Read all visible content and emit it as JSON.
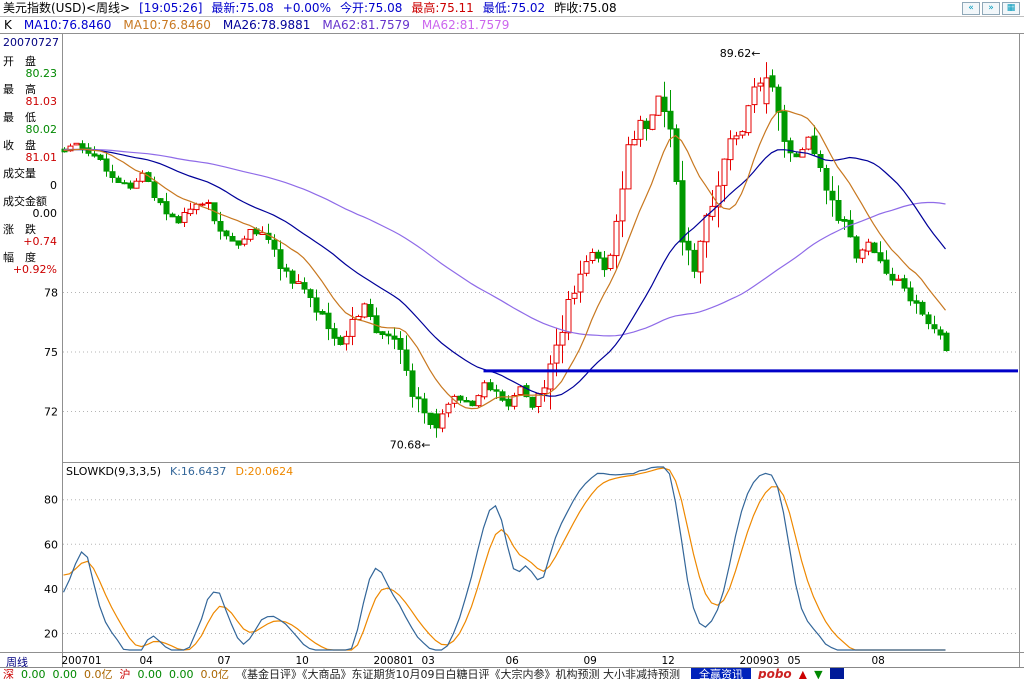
{
  "topbar": {
    "title": "美元指数(USD)<周线>",
    "clock": "[19:05:26]",
    "last": "最新:75.08",
    "change": "+0.00%",
    "open": "今开:75.08",
    "high": "最高:75.11",
    "low": "最低:75.02",
    "prev": "昨收:75.08",
    "buttons": [
      "«",
      "»",
      "▦"
    ]
  },
  "ma_bar": {
    "k": "K",
    "ma10_1": "MA10:76.8460",
    "ma10_2": "MA10:76.8460",
    "ma26": "MA26:78.9881",
    "ma62_1": "MA62:81.7579",
    "ma62_2": "MA62:81.7579"
  },
  "sidebar": {
    "date": "20070727",
    "fields": [
      {
        "label": "开　盘",
        "value": "80.23",
        "color": "#008800"
      },
      {
        "label": "最　高",
        "value": "81.03",
        "color": "#cc0000"
      },
      {
        "label": "最　低",
        "value": "80.02",
        "color": "#008800"
      },
      {
        "label": "收　盘",
        "value": "81.01",
        "color": "#cc0000"
      },
      {
        "label": "成交量",
        "value": "0",
        "color": "#000000"
      },
      {
        "label": "成交金额",
        "value": "0.00",
        "color": "#000000"
      },
      {
        "label": "涨　跌",
        "value": "+0.74",
        "color": "#cc0000"
      },
      {
        "label": "幅　度",
        "value": "+0.92%",
        "color": "#cc0000"
      }
    ]
  },
  "indicator": {
    "title": "SLOWKD(9,3,3,5)",
    "k_text": "K:16.6437",
    "d_text": "D:20.0624"
  },
  "x_axis": {
    "period_label": "周线"
  },
  "status_bar": {
    "items": [
      {
        "t": "深",
        "c": "#cc0000"
      },
      {
        "t": "0.00",
        "c": "#008800"
      },
      {
        "t": "0.00",
        "c": "#008800"
      },
      {
        "t": "0.0亿",
        "c": "#aa6600"
      },
      {
        "t": "沪",
        "c": "#cc0000"
      },
      {
        "t": "0.00",
        "c": "#008800"
      },
      {
        "t": "0.00",
        "c": "#008800"
      },
      {
        "t": "0.0亿",
        "c": "#aa6600"
      },
      {
        "t": "《基金日评》《大商品》东证期货10月09日白糖日评《大宗内参》机构预测 大小非减持预测",
        "c": "#222222",
        "name": "news-ticker",
        "link": true
      }
    ],
    "badge": "全赢资讯",
    "brand": "pobo",
    "up_arrow": "▲",
    "down_arrow": "▼"
  },
  "chart_data": {
    "type": "candlestick",
    "symbol": "美元指数(USD)",
    "period": "周线",
    "last_price": 75.08,
    "weeks": 148,
    "price_axis": {
      "ticks": [
        78,
        75,
        72
      ],
      "visible_range": [
        70.3,
        91.0
      ]
    },
    "price_anchors": [
      [
        0,
        85.1
      ],
      [
        2,
        85.5
      ],
      [
        5,
        84.8
      ],
      [
        8,
        83.9
      ],
      [
        11,
        83.3
      ],
      [
        13,
        84.0
      ],
      [
        16,
        82.3
      ],
      [
        19,
        81.6
      ],
      [
        21,
        82.3
      ],
      [
        24,
        82.6
      ],
      [
        26,
        81.2
      ],
      [
        29,
        80.4
      ],
      [
        31,
        81.2
      ],
      [
        34,
        80.6
      ],
      [
        36,
        79.2
      ],
      [
        39,
        78.3
      ],
      [
        41,
        77.6
      ],
      [
        44,
        76.4
      ],
      [
        46,
        75.3
      ],
      [
        48,
        76.3
      ],
      [
        50,
        77.4
      ],
      [
        52,
        76.1
      ],
      [
        55,
        75.7
      ],
      [
        57,
        73.9
      ],
      [
        59,
        72.4
      ],
      [
        61,
        71.4
      ],
      [
        62,
        71.1
      ],
      [
        63,
        71.9
      ],
      [
        65,
        72.7
      ],
      [
        68,
        72.4
      ],
      [
        70,
        73.4
      ],
      [
        72,
        72.9
      ],
      [
        74,
        72.2
      ],
      [
        76,
        73.3
      ],
      [
        78,
        72.3
      ],
      [
        80,
        73.2
      ],
      [
        82,
        75.6
      ],
      [
        84,
        77.2
      ],
      [
        86,
        78.8
      ],
      [
        88,
        80.0
      ],
      [
        90,
        79.2
      ],
      [
        92,
        81.6
      ],
      [
        94,
        85.0
      ],
      [
        96,
        86.8
      ],
      [
        97,
        86.0
      ],
      [
        99,
        88.0
      ],
      [
        101,
        86.2
      ],
      [
        103,
        80.6
      ],
      [
        105,
        79.2
      ],
      [
        107,
        81.6
      ],
      [
        109,
        83.6
      ],
      [
        111,
        85.8
      ],
      [
        113,
        86.2
      ],
      [
        115,
        88.0
      ],
      [
        117,
        89.0
      ],
      [
        118,
        88.3
      ],
      [
        120,
        85.8
      ],
      [
        122,
        84.8
      ],
      [
        124,
        85.7
      ],
      [
        126,
        84.3
      ],
      [
        128,
        82.8
      ],
      [
        130,
        81.2
      ],
      [
        132,
        79.8
      ],
      [
        134,
        80.5
      ],
      [
        136,
        79.4
      ],
      [
        138,
        78.7
      ],
      [
        140,
        78.3
      ],
      [
        142,
        77.2
      ],
      [
        144,
        76.4
      ],
      [
        146,
        75.7
      ],
      [
        147,
        75.1
      ]
    ],
    "annotations": [
      {
        "week": 117,
        "price": 89.62,
        "label": "89.62←",
        "valign": "top"
      },
      {
        "week": 62,
        "price": 70.68,
        "label": "70.68←",
        "valign": "bottom"
      }
    ],
    "trendline": {
      "price": 74.05,
      "from_week": 70,
      "color": "#0000c8"
    },
    "moving_averages": {
      "MA10": 76.846,
      "MA26": 78.9881,
      "MA62": 81.7579
    },
    "ma_colors": {
      "MA10": "#c87820",
      "MA26": "#000099",
      "MA62": "#8f6be8"
    },
    "candle_colors": {
      "up": "#e60000",
      "down": "#009900"
    },
    "indicator": {
      "name": "SLOWKD",
      "params": [
        9,
        3,
        3,
        5
      ],
      "K": 16.6437,
      "D": 20.0624,
      "ticks": [
        80,
        60,
        40,
        20
      ],
      "k_color": "#336699",
      "d_color": "#ee8800"
    },
    "x_ticks": [
      [
        "200701",
        0
      ],
      [
        "04",
        13
      ],
      [
        "07",
        26
      ],
      [
        "10",
        39
      ],
      [
        "200801",
        52
      ],
      [
        "03",
        60
      ],
      [
        "06",
        74
      ],
      [
        "09",
        87
      ],
      [
        "12",
        100
      ],
      [
        "200903",
        113
      ],
      [
        "05",
        121
      ],
      [
        "08",
        135
      ]
    ]
  }
}
